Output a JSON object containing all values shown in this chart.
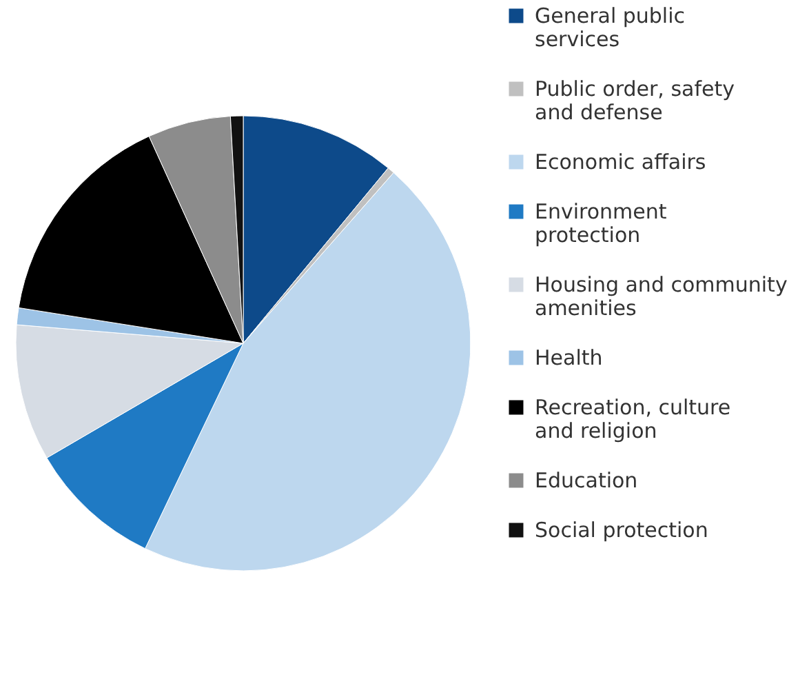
{
  "chart_data": {
    "type": "pie",
    "categories": [
      "General public services",
      "Public order, safety and defense",
      "Economic affairs",
      "Environment protection",
      "Housing and community amenities",
      "Health",
      "Recreation, culture and religion",
      "Education",
      "Social protection"
    ],
    "values": [
      11,
      0.5,
      45.6,
      9.5,
      9.7,
      1.2,
      15.7,
      5.9,
      0.9
    ],
    "colors": [
      "#0d4a8a",
      "#c0c0c0",
      "#bdd7ee",
      "#1f7ac4",
      "#d6dce4",
      "#9dc3e6",
      "#000000",
      "#8c8c8c",
      "#111111"
    ],
    "legend": "right"
  }
}
